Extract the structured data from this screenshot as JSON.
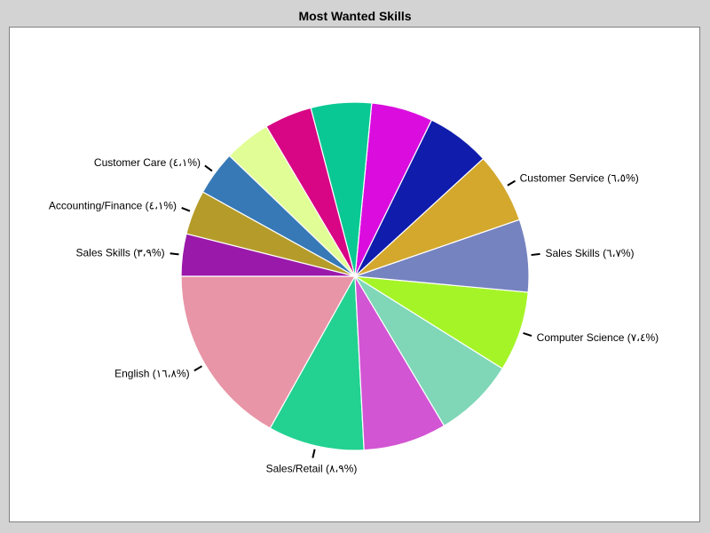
{
  "chart_data": {
    "type": "pie",
    "title": "Most Wanted Skills",
    "slices": [
      {
        "label": "English (١٦،٨%)",
        "value": 16.8,
        "color": "#E895A7",
        "show_label": true
      },
      {
        "label": "Sales/Retail (٨،٩%)",
        "value": 8.9,
        "color": "#23D191",
        "show_label": true
      },
      {
        "label": "",
        "value": 7.7,
        "color": "#D255D3",
        "show_label": false
      },
      {
        "label": "",
        "value": 7.5,
        "color": "#7FD7B8",
        "show_label": false
      },
      {
        "label": "Computer Science (٧،٤%)",
        "value": 7.4,
        "color": "#A5F428",
        "show_label": true
      },
      {
        "label": "Sales Skills (٦،٧%)",
        "value": 6.7,
        "color": "#7583C0",
        "show_label": true
      },
      {
        "label": "Customer Service (٦،٥%)",
        "value": 6.5,
        "color": "#D3A82D",
        "show_label": true
      },
      {
        "label": "",
        "value": 5.9,
        "color": "#101CAC",
        "show_label": false
      },
      {
        "label": "",
        "value": 5.7,
        "color": "#DA0DDE",
        "show_label": false
      },
      {
        "label": "",
        "value": 5.6,
        "color": "#0AC893",
        "show_label": false
      },
      {
        "label": "",
        "value": 4.4,
        "color": "#D80584",
        "show_label": false
      },
      {
        "label": "",
        "value": 4.3,
        "color": "#E1FD96",
        "show_label": false
      },
      {
        "label": "Customer Care (٤،١%)",
        "value": 4.1,
        "color": "#3779B6",
        "show_label": true
      },
      {
        "label": "Accounting/Finance (٤،١%)",
        "value": 4.1,
        "color": "#B59C2A",
        "show_label": true
      },
      {
        "label": "Sales Skills (٣،٩%)",
        "value": 3.9,
        "color": "#9A19AA",
        "show_label": true
      }
    ]
  }
}
